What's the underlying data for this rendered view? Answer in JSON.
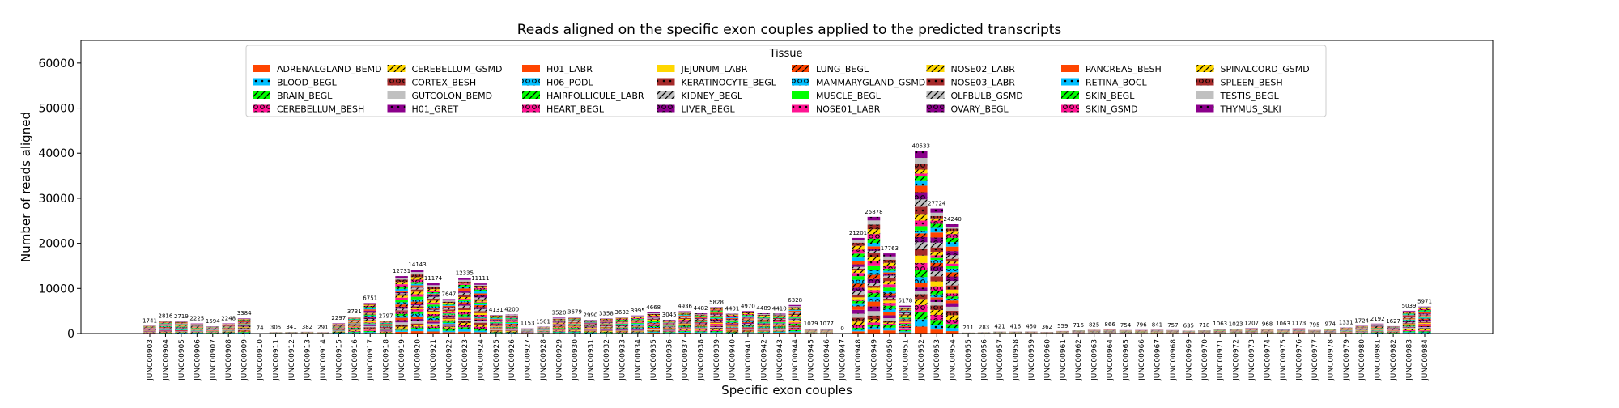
{
  "chart_data": {
    "type": "bar",
    "stacked": true,
    "title": "Reads aligned on the specific exon couples applied to the predicted transcripts",
    "xlabel": "Specific exon couples",
    "ylabel": "Number of reads aligned",
    "ylim": [
      0,
      65000
    ],
    "yticks": [
      0,
      10000,
      20000,
      30000,
      40000,
      50000,
      60000
    ],
    "legend_title": "Tissue",
    "legend_placement": "top",
    "legend_columns": 8,
    "grid": false,
    "categories": [
      "JUNC00903",
      "JUNC00904",
      "JUNC00905",
      "JUNC00906",
      "JUNC00907",
      "JUNC00908",
      "JUNC00909",
      "JUNC00910",
      "JUNC00911",
      "JUNC00912",
      "JUNC00913",
      "JUNC00914",
      "JUNC00915",
      "JUNC00916",
      "JUNC00917",
      "JUNC00918",
      "JUNC00919",
      "JUNC00920",
      "JUNC00921",
      "JUNC00922",
      "JUNC00923",
      "JUNC00924",
      "JUNC00925",
      "JUNC00926",
      "JUNC00927",
      "JUNC00928",
      "JUNC00929",
      "JUNC00930",
      "JUNC00931",
      "JUNC00932",
      "JUNC00933",
      "JUNC00934",
      "JUNC00935",
      "JUNC00936",
      "JUNC00937",
      "JUNC00938",
      "JUNC00939",
      "JUNC00940",
      "JUNC00941",
      "JUNC00942",
      "JUNC00943",
      "JUNC00944",
      "JUNC00945",
      "JUNC00946",
      "JUNC00947",
      "JUNC00948",
      "JUNC00949",
      "JUNC00950",
      "JUNC00951",
      "JUNC00952",
      "JUNC00953",
      "JUNC00954",
      "JUNC00955",
      "JUNC00956",
      "JUNC00957",
      "JUNC00958",
      "JUNC00959",
      "JUNC00960",
      "JUNC00961",
      "JUNC00962",
      "JUNC00963",
      "JUNC00964",
      "JUNC00965",
      "JUNC00966",
      "JUNC00967",
      "JUNC00968",
      "JUNC00969",
      "JUNC00970",
      "JUNC00971",
      "JUNC00972",
      "JUNC00973",
      "JUNC00974",
      "JUNC00975",
      "JUNC00976",
      "JUNC00977",
      "JUNC00978",
      "JUNC00979",
      "JUNC00980",
      "JUNC00981",
      "JUNC00982",
      "JUNC00983",
      "JUNC00984"
    ],
    "totals": [
      1741,
      2816,
      2719,
      2225,
      1594,
      2248,
      3384,
      74,
      305,
      341,
      382,
      291,
      2297,
      3731,
      6751,
      2797,
      12731,
      14143,
      11174,
      7647,
      12335,
      11111,
      4131,
      4200,
      1153,
      1501,
      3520,
      3679,
      2990,
      3358,
      3632,
      3995,
      4668,
      3045,
      4936,
      4482,
      5828,
      4401,
      4970,
      4489,
      4410,
      6328,
      1079,
      1077,
      0,
      21201,
      25878,
      17763,
      6178,
      40533,
      27724,
      24240,
      211,
      283,
      421,
      416,
      450,
      362,
      559,
      716,
      825,
      866,
      754,
      796,
      841,
      757,
      635,
      718,
      1063,
      1023,
      1207,
      968,
      1063,
      1173,
      795,
      974,
      1331,
      1724,
      2192,
      1627,
      5039,
      5971
    ],
    "total_labels": [
      "1741",
      "2816",
      "2719",
      "2225",
      "1594",
      "2248",
      "3384",
      "74",
      "305",
      "341",
      "382",
      "291",
      "2297",
      "3731",
      "6751",
      "2797",
      "12731",
      "14143",
      "11174",
      "7647",
      "12335",
      "11111",
      "4131",
      "4200",
      "1153",
      "1501",
      "3520",
      "3679",
      "2990",
      "3358",
      "3632",
      "3995",
      "4668",
      "3045",
      "4936",
      "4482",
      "5828",
      "4401",
      "4970",
      "4489",
      "4410",
      "6328",
      "1079",
      "1077",
      "0",
      "21201",
      "25878",
      "17763",
      "6178",
      "40533",
      "27724",
      "24240",
      "211",
      "283",
      "421",
      "416",
      "450",
      "362",
      "559",
      "716",
      "825",
      "866",
      "754",
      "796",
      "841",
      "757",
      "635",
      "718",
      "1063",
      "1023",
      "1207",
      "968",
      "1063",
      "1173",
      "795",
      "974",
      "1331",
      "1724",
      "2192",
      "1627",
      "5039",
      "5971"
    ],
    "series": [
      {
        "name": "ADRENALGLAND_BEMD",
        "color": "#ff4500",
        "hatch": "none"
      },
      {
        "name": "BLOOD_BEGL",
        "color": "#00bfff",
        "hatch": "dot"
      },
      {
        "name": "BRAIN_BEGL",
        "color": "#00ff00",
        "hatch": "slash"
      },
      {
        "name": "CEREBELLUM_BESH",
        "color": "#ff1493",
        "hatch": "ring"
      },
      {
        "name": "CEREBELLUM_GSMD",
        "color": "#ffd700",
        "hatch": "slash"
      },
      {
        "name": "CORTEX_BESH",
        "color": "#a52a2a",
        "hatch": "ring"
      },
      {
        "name": "GUTCOLON_BEMD",
        "color": "#c0c0c0",
        "hatch": "none"
      },
      {
        "name": "H01_GRET",
        "color": "#8b008b",
        "hatch": "dot"
      },
      {
        "name": "H01_LABR",
        "color": "#ff4500",
        "hatch": "none"
      },
      {
        "name": "H06_PODL",
        "color": "#00bfff",
        "hatch": "ring"
      },
      {
        "name": "HAIRFOLLICULE_LABR",
        "color": "#00ff00",
        "hatch": "slash"
      },
      {
        "name": "HEART_BEGL",
        "color": "#ff1493",
        "hatch": "ring"
      },
      {
        "name": "JEJUNUM_LABR",
        "color": "#ffd700",
        "hatch": "none"
      },
      {
        "name": "KERATINOCYTE_BEGL",
        "color": "#a52a2a",
        "hatch": "dot"
      },
      {
        "name": "KIDNEY_BEGL",
        "color": "#c0c0c0",
        "hatch": "slash"
      },
      {
        "name": "LIVER_BEGL",
        "color": "#8b008b",
        "hatch": "ring"
      },
      {
        "name": "LUNG_BEGL",
        "color": "#ff4500",
        "hatch": "slash"
      },
      {
        "name": "MAMMARYGLAND_GSMD",
        "color": "#00bfff",
        "hatch": "ring"
      },
      {
        "name": "MUSCLE_BEGL",
        "color": "#00ff00",
        "hatch": "none"
      },
      {
        "name": "NOSE01_LABR",
        "color": "#ff1493",
        "hatch": "dot"
      },
      {
        "name": "NOSE02_LABR",
        "color": "#ffd700",
        "hatch": "slash"
      },
      {
        "name": "NOSE03_LABR",
        "color": "#a52a2a",
        "hatch": "dot"
      },
      {
        "name": "OLFBULB_GSMD",
        "color": "#c0c0c0",
        "hatch": "slash"
      },
      {
        "name": "OVARY_BEGL",
        "color": "#8b008b",
        "hatch": "ring"
      },
      {
        "name": "PANCREAS_BESH",
        "color": "#ff4500",
        "hatch": "none"
      },
      {
        "name": "RETINA_BOCL",
        "color": "#00bfff",
        "hatch": "dot"
      },
      {
        "name": "SKIN_BEGL",
        "color": "#00ff00",
        "hatch": "slash"
      },
      {
        "name": "SKIN_GSMD",
        "color": "#ff1493",
        "hatch": "ring"
      },
      {
        "name": "SPINALCORD_GSMD",
        "color": "#ffd700",
        "hatch": "slash"
      },
      {
        "name": "SPLEEN_BESH",
        "color": "#a52a2a",
        "hatch": "ring"
      },
      {
        "name": "TESTIS_BEGL",
        "color": "#c0c0c0",
        "hatch": "none"
      },
      {
        "name": "THYMUS_SLKI",
        "color": "#8b008b",
        "hatch": "dot"
      }
    ]
  }
}
